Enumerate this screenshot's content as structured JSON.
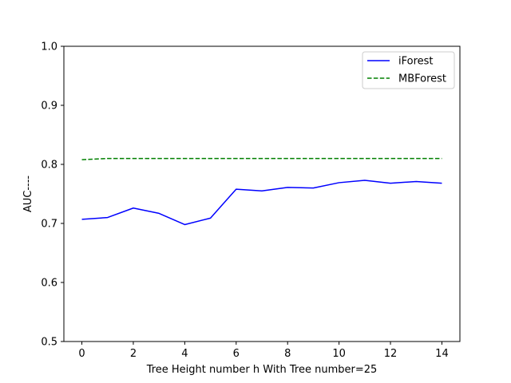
{
  "chart_data": {
    "type": "line",
    "xlabel": "Tree Height number h With Tree number=25",
    "ylabel": "AUC----",
    "xlim": [
      -0.7,
      14.7
    ],
    "ylim": [
      0.5,
      1.0
    ],
    "xticks": [
      0,
      2,
      4,
      6,
      8,
      10,
      12,
      14
    ],
    "yticks": [
      0.5,
      0.6,
      0.7,
      0.8,
      0.9,
      1.0
    ],
    "xtick_labels": [
      "0",
      "2",
      "4",
      "6",
      "8",
      "10",
      "12",
      "14"
    ],
    "ytick_labels": [
      "0.5",
      "0.6",
      "0.7",
      "0.8",
      "0.9",
      "1.0"
    ],
    "grid": false,
    "legend_position": "top-right",
    "x": [
      0,
      1,
      2,
      3,
      4,
      5,
      6,
      7,
      8,
      9,
      10,
      11,
      12,
      13,
      14
    ],
    "series": [
      {
        "name": "iForest",
        "color": "#0000ff",
        "style": "solid",
        "values": [
          0.707,
          0.71,
          0.726,
          0.717,
          0.698,
          0.709,
          0.758,
          0.755,
          0.761,
          0.76,
          0.769,
          0.773,
          0.768,
          0.771,
          0.768
        ]
      },
      {
        "name": "MBForest",
        "color": "#008000",
        "style": "dashed",
        "values": [
          0.808,
          0.81,
          0.81,
          0.81,
          0.81,
          0.81,
          0.81,
          0.81,
          0.81,
          0.81,
          0.81,
          0.81,
          0.81,
          0.81,
          0.81
        ]
      }
    ]
  }
}
